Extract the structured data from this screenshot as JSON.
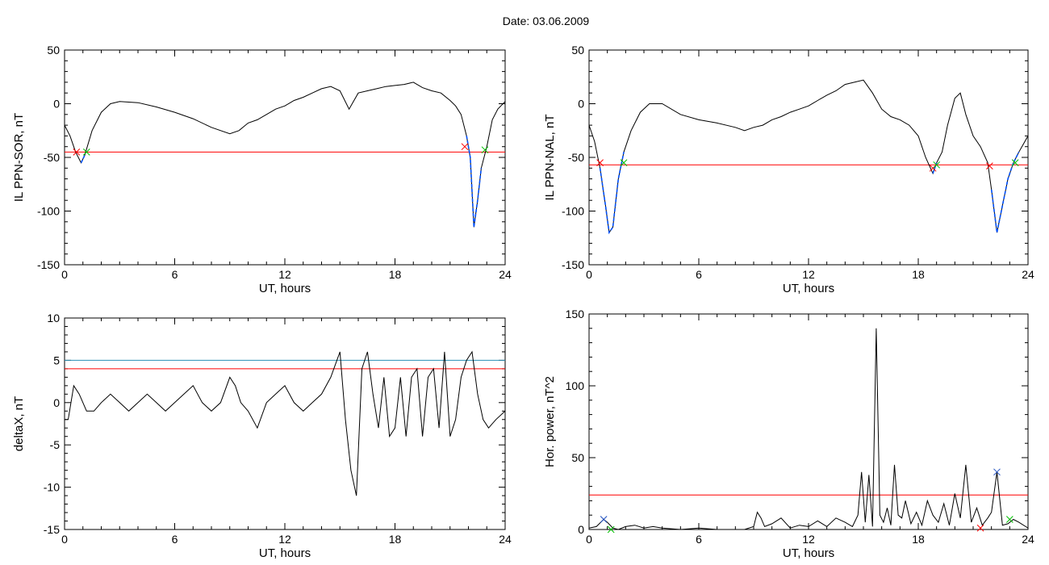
{
  "page": {
    "title": "Date:  03.06.2009"
  },
  "colors": {
    "series": "#000000",
    "threshold": "#ff0000",
    "threshold2": "#2a8fb5",
    "segment": "#0050ff",
    "start_marker": "#ff0000",
    "end_marker": "#00c000",
    "peak_marker": "#2050c0"
  },
  "chart_data": [
    {
      "type": "line",
      "name": "top-left",
      "ylabel": "IL PPN-SOR, nT",
      "xlabel": "UT, hours",
      "xlim": [
        0,
        24
      ],
      "ylim": [
        -150,
        50
      ],
      "xticks": [
        0,
        6,
        12,
        18,
        24
      ],
      "yticks": [
        -150,
        -100,
        -50,
        0,
        50
      ],
      "x": [
        0,
        0.3,
        0.6,
        0.9,
        1.1,
        1.5,
        2.0,
        2.5,
        3.0,
        4.0,
        5.0,
        6.0,
        7.0,
        8.0,
        9.0,
        9.5,
        10.0,
        10.5,
        11.0,
        11.5,
        12.0,
        12.5,
        13.0,
        13.5,
        14.0,
        14.5,
        15.0,
        15.5,
        16.0,
        16.5,
        17.0,
        17.5,
        18.0,
        18.5,
        19.0,
        19.5,
        20.0,
        20.5,
        21.0,
        21.3,
        21.6,
        21.9,
        22.1,
        22.3,
        22.5,
        22.7,
        23.0,
        23.3,
        23.6,
        24.0
      ],
      "y": [
        -20,
        -30,
        -45,
        -55,
        -48,
        -25,
        -8,
        0,
        2,
        1,
        -3,
        -8,
        -14,
        -22,
        -28,
        -25,
        -18,
        -15,
        -10,
        -5,
        -2,
        3,
        6,
        10,
        14,
        16,
        12,
        -5,
        10,
        12,
        14,
        16,
        17,
        18,
        20,
        15,
        12,
        10,
        3,
        -2,
        -10,
        -30,
        -50,
        -115,
        -90,
        -60,
        -40,
        -15,
        -5,
        2
      ],
      "thresholds": [
        {
          "value": -45,
          "color": "#ff0000"
        }
      ],
      "segments": [
        [
          0.8,
          1.3
        ],
        [
          21.8,
          22.9
        ]
      ],
      "markers": [
        {
          "x": 0.65,
          "y": -45,
          "kind": "start"
        },
        {
          "x": 1.2,
          "y": -45,
          "kind": "end"
        },
        {
          "x": 21.8,
          "y": -40,
          "kind": "start"
        },
        {
          "x": 22.9,
          "y": -43,
          "kind": "end"
        }
      ]
    },
    {
      "type": "line",
      "name": "top-right",
      "ylabel": "IL PPN-NAL, nT",
      "xlabel": "UT, hours",
      "xlim": [
        0,
        24
      ],
      "ylim": [
        -150,
        50
      ],
      "xticks": [
        0,
        6,
        12,
        18,
        24
      ],
      "yticks": [
        -150,
        -100,
        -50,
        0,
        50
      ],
      "x": [
        0,
        0.3,
        0.6,
        0.9,
        1.1,
        1.3,
        1.6,
        1.9,
        2.3,
        2.8,
        3.3,
        4.0,
        5.0,
        6.0,
        7.0,
        8.0,
        8.5,
        9.0,
        9.5,
        10.0,
        10.5,
        11.0,
        11.5,
        12.0,
        12.5,
        13.0,
        13.5,
        14.0,
        14.5,
        15.0,
        15.5,
        16.0,
        16.5,
        17.0,
        17.5,
        18.0,
        18.4,
        18.8,
        19.0,
        19.3,
        19.6,
        20.0,
        20.3,
        20.6,
        21.0,
        21.4,
        21.8,
        22.0,
        22.3,
        22.6,
        22.9,
        23.2,
        23.5,
        24.0
      ],
      "y": [
        -20,
        -35,
        -60,
        -95,
        -120,
        -115,
        -70,
        -45,
        -25,
        -8,
        0,
        0,
        -10,
        -15,
        -18,
        -22,
        -25,
        -22,
        -20,
        -15,
        -12,
        -8,
        -5,
        -2,
        3,
        8,
        12,
        18,
        20,
        22,
        10,
        -5,
        -12,
        -15,
        -20,
        -30,
        -50,
        -65,
        -55,
        -45,
        -20,
        5,
        10,
        -10,
        -30,
        -40,
        -55,
        -80,
        -120,
        -95,
        -70,
        -55,
        -45,
        -30
      ],
      "thresholds": [
        {
          "value": -57,
          "color": "#ff0000"
        }
      ],
      "segments": [
        [
          0.6,
          1.9
        ],
        [
          18.8,
          19.1
        ],
        [
          22.0,
          23.5
        ]
      ],
      "markers": [
        {
          "x": 0.6,
          "y": -55,
          "kind": "start"
        },
        {
          "x": 1.9,
          "y": -55,
          "kind": "end"
        },
        {
          "x": 18.8,
          "y": -60,
          "kind": "start"
        },
        {
          "x": 19.0,
          "y": -57,
          "kind": "end"
        },
        {
          "x": 21.9,
          "y": -58,
          "kind": "start"
        },
        {
          "x": 23.3,
          "y": -55,
          "kind": "end"
        }
      ]
    },
    {
      "type": "line",
      "name": "bottom-left",
      "ylabel": "deltaX, nT",
      "xlabel": "UT, hours",
      "xlim": [
        0,
        24
      ],
      "ylim": [
        -15,
        10
      ],
      "xticks": [
        0,
        6,
        12,
        18,
        24
      ],
      "yticks": [
        -15,
        -10,
        -5,
        0,
        5,
        10
      ],
      "x": [
        0,
        0.2,
        0.5,
        0.8,
        1.2,
        1.6,
        2.0,
        2.5,
        3.0,
        3.5,
        4.0,
        4.5,
        5.0,
        5.5,
        6.0,
        6.5,
        7.0,
        7.5,
        8.0,
        8.5,
        9.0,
        9.3,
        9.6,
        10.0,
        10.5,
        11.0,
        11.5,
        12.0,
        12.5,
        13.0,
        13.5,
        14.0,
        14.5,
        15.0,
        15.3,
        15.6,
        15.9,
        16.2,
        16.5,
        16.8,
        17.1,
        17.4,
        17.7,
        18.0,
        18.3,
        18.6,
        18.9,
        19.2,
        19.5,
        19.8,
        20.1,
        20.4,
        20.7,
        21.0,
        21.3,
        21.6,
        21.9,
        22.2,
        22.5,
        22.8,
        23.1,
        23.5,
        24.0
      ],
      "y": [
        -2,
        -2,
        2,
        1,
        -1,
        -1,
        0,
        1,
        0,
        -1,
        0,
        1,
        0,
        -1,
        0,
        1,
        2,
        0,
        -1,
        0,
        3,
        2,
        0,
        -1,
        -3,
        0,
        1,
        2,
        0,
        -1,
        0,
        1,
        3,
        6,
        -2,
        -8,
        -11,
        4,
        6,
        1,
        -3,
        3,
        -4,
        -3,
        3,
        -4,
        3,
        4,
        -4,
        3,
        4,
        -3,
        6,
        -4,
        -2,
        3,
        5,
        6,
        1,
        -2,
        -3,
        -2,
        -1
      ],
      "thresholds": [
        {
          "value": 5,
          "color": "#2a8fb5"
        },
        {
          "value": 4,
          "color": "#ff0000"
        }
      ],
      "segments": [],
      "markers": []
    },
    {
      "type": "line",
      "name": "bottom-right",
      "ylabel": "Hor. power, nT^2",
      "xlabel": "UT, hours",
      "xlim": [
        0,
        24
      ],
      "ylim": [
        0,
        150
      ],
      "xticks": [
        0,
        6,
        12,
        18,
        24
      ],
      "yticks": [
        0,
        50,
        100,
        150
      ],
      "x": [
        0,
        0.4,
        0.8,
        1.0,
        1.3,
        1.6,
        2.0,
        2.5,
        3.0,
        3.5,
        4.0,
        5.0,
        6.0,
        7.0,
        8.0,
        8.5,
        9.0,
        9.2,
        9.4,
        9.6,
        10.0,
        10.5,
        11.0,
        11.5,
        12.0,
        12.5,
        13.0,
        13.5,
        14.0,
        14.4,
        14.7,
        14.9,
        15.1,
        15.3,
        15.5,
        15.7,
        15.9,
        16.1,
        16.3,
        16.5,
        16.7,
        16.9,
        17.1,
        17.3,
        17.6,
        17.9,
        18.2,
        18.5,
        18.8,
        19.1,
        19.4,
        19.7,
        20.0,
        20.3,
        20.6,
        20.9,
        21.2,
        21.5,
        21.8,
        22.0,
        22.3,
        22.6,
        22.9,
        23.2,
        23.5,
        24.0
      ],
      "y": [
        1,
        2,
        7,
        5,
        1,
        0,
        2,
        3,
        1,
        2,
        1,
        0,
        1,
        0,
        0,
        0,
        2,
        12,
        8,
        2,
        4,
        8,
        1,
        3,
        2,
        6,
        2,
        8,
        5,
        2,
        10,
        40,
        5,
        38,
        2,
        140,
        10,
        5,
        15,
        3,
        45,
        10,
        8,
        20,
        4,
        12,
        3,
        20,
        10,
        5,
        18,
        3,
        25,
        8,
        45,
        5,
        15,
        3,
        8,
        12,
        40,
        3,
        4,
        7,
        5,
        1
      ],
      "thresholds": [
        {
          "value": 24,
          "color": "#ff0000"
        }
      ],
      "segments": [],
      "markers": [
        {
          "x": 0.8,
          "y": 7,
          "kind": "peak"
        },
        {
          "x": 1.2,
          "y": 0,
          "kind": "end"
        },
        {
          "x": 21.4,
          "y": 1,
          "kind": "start"
        },
        {
          "x": 22.3,
          "y": 40,
          "kind": "peak"
        },
        {
          "x": 23.0,
          "y": 7,
          "kind": "end"
        }
      ]
    }
  ]
}
